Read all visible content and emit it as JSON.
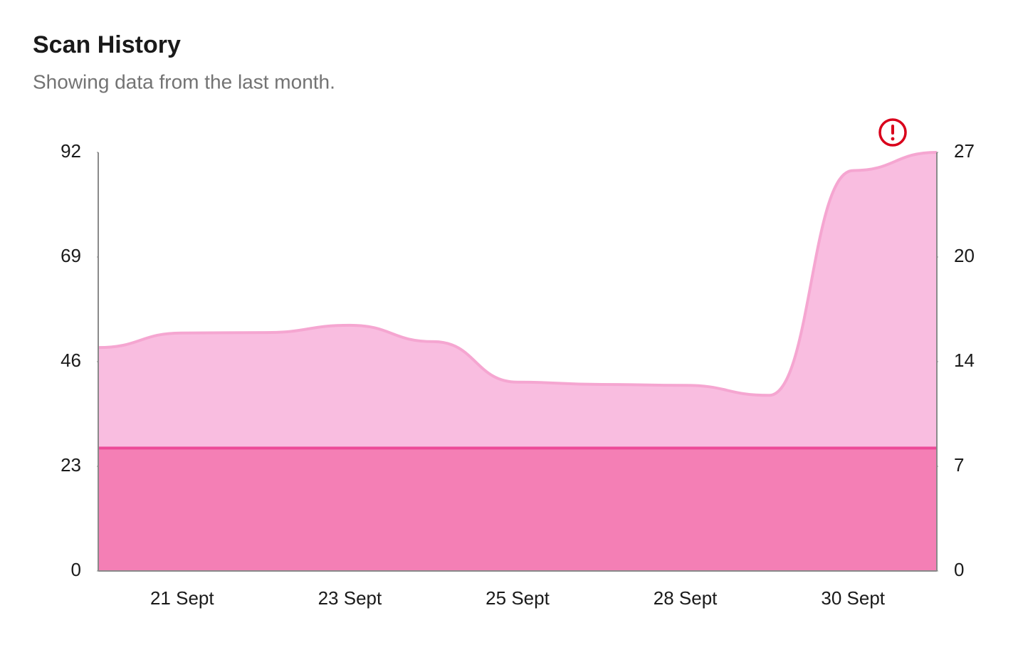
{
  "chart_data": {
    "type": "area",
    "title": "Scan History",
    "subtitle": "Showing data from the last month.",
    "categories": [
      null,
      "21 Sept",
      null,
      "23 Sept",
      null,
      "25 Sept",
      null,
      "28 Sept",
      null,
      "30 Sept",
      null
    ],
    "series": [
      {
        "color": "#f9bde0",
        "line_color": "#f5a6d1",
        "values": [
          49.1,
          52.3,
          52.4,
          54,
          50.4,
          41.5,
          41,
          40.8,
          38.6,
          88,
          92
        ]
      },
      {
        "color": "#f47fb5",
        "line_color": "#ec4b98",
        "values": [
          27,
          27,
          27,
          27,
          27,
          27,
          27,
          27,
          27,
          27,
          27
        ]
      }
    ],
    "ylim": [
      0,
      92
    ],
    "yticks": [
      0,
      23,
      46,
      69,
      92
    ],
    "y2lim": [
      0,
      27
    ],
    "y2ticks": [
      0,
      {
        "value": 6.75,
        "label": "7"
      },
      {
        "value": 13.5,
        "label": "14"
      },
      {
        "value": 20.25,
        "label": "20"
      },
      27
    ],
    "grid": false
  }
}
